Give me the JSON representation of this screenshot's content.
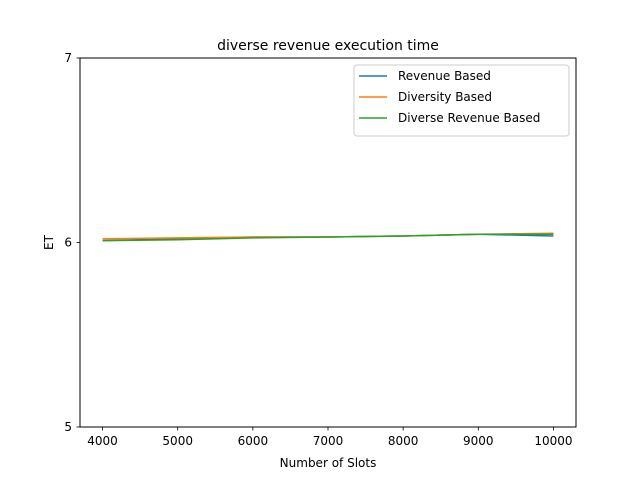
{
  "chart_data": {
    "type": "line",
    "title": "diverse revenue execution time",
    "xlabel": "Number of Slots",
    "ylabel": "ET",
    "x": [
      4000,
      5000,
      6000,
      7000,
      8000,
      9000,
      10000
    ],
    "xlim": [
      3700,
      10300
    ],
    "ylim": [
      5,
      7
    ],
    "xticks": [
      4000,
      5000,
      6000,
      7000,
      8000,
      9000,
      10000
    ],
    "yticks": [
      5,
      6,
      7
    ],
    "grid": false,
    "legend_position": "top-right",
    "series": [
      {
        "name": "Revenue Based",
        "color": "#1f77b4",
        "values": [
          6.01,
          6.02,
          6.03,
          6.03,
          6.035,
          6.045,
          6.035
        ]
      },
      {
        "name": "Diversity Based",
        "color": "#ff7f0e",
        "values": [
          6.02,
          6.025,
          6.03,
          6.03,
          6.035,
          6.045,
          6.05
        ]
      },
      {
        "name": "Diverse Revenue Based",
        "color": "#2ca02c",
        "values": [
          6.01,
          6.015,
          6.025,
          6.03,
          6.035,
          6.045,
          6.045
        ]
      }
    ]
  }
}
